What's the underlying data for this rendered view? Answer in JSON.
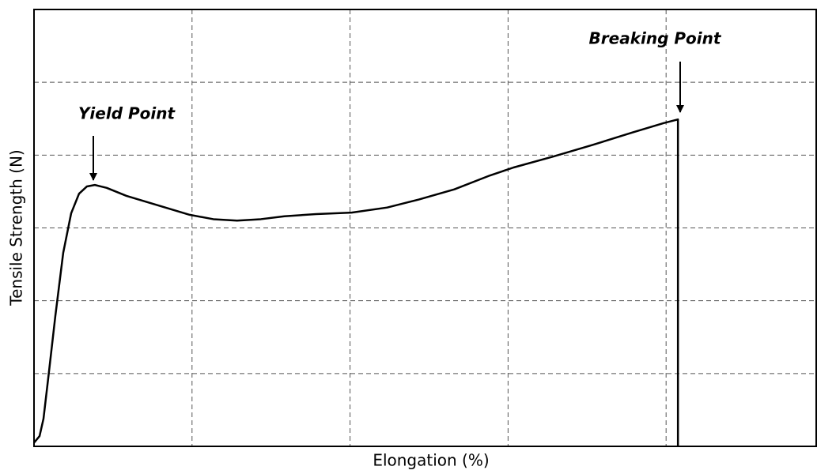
{
  "chart_data": {
    "type": "line",
    "x_label": "Elongation (%)",
    "y_label": "Tensile Strength (N)",
    "annotations": [
      "Yield Point",
      "Breaking Point"
    ],
    "xlim": [
      0,
      4.95
    ],
    "ylim": [
      0,
      6
    ],
    "xticks": [
      1,
      2,
      3,
      4
    ],
    "yticks": [
      1,
      2,
      3,
      4,
      5
    ],
    "grid": true,
    "color": "#000000",
    "x": [
      0,
      0.035,
      0.06,
      0.095,
      0.135,
      0.185,
      0.235,
      0.285,
      0.335,
      0.385,
      0.46,
      0.585,
      0.785,
      0.985,
      1.135,
      1.285,
      1.435,
      1.585,
      1.785,
      2.01,
      2.235,
      2.435,
      2.66,
      2.885,
      3.035,
      3.285,
      3.535,
      3.785,
      3.985,
      4.075,
      4.075
    ],
    "values": [
      0.05,
      0.14,
      0.38,
      1.03,
      1.79,
      2.66,
      3.2,
      3.47,
      3.57,
      3.59,
      3.55,
      3.44,
      3.31,
      3.18,
      3.12,
      3.1,
      3.12,
      3.16,
      3.19,
      3.21,
      3.28,
      3.39,
      3.53,
      3.72,
      3.83,
      3.98,
      4.14,
      4.31,
      4.44,
      4.49,
      0
    ]
  }
}
